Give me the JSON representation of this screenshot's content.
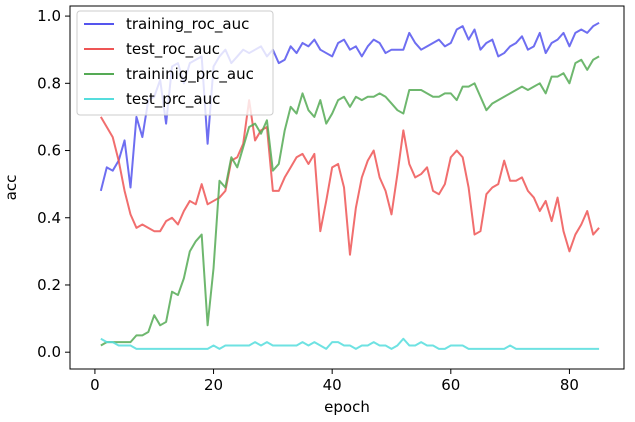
{
  "chart_data": {
    "type": "line",
    "xlabel": "epoch",
    "ylabel": "acc",
    "xlim": [
      -4.2,
      89.2
    ],
    "ylim": [
      -0.05,
      1.03
    ],
    "xticks": [
      0,
      20,
      40,
      60,
      80
    ],
    "yticks": [
      0.0,
      0.2,
      0.4,
      0.6,
      0.8,
      1.0
    ],
    "xtick_labels": [
      "0",
      "20",
      "40",
      "60",
      "80"
    ],
    "ytick_labels": [
      "0.0",
      "0.2",
      "0.4",
      "0.6",
      "0.8",
      "1.0"
    ],
    "grid": false,
    "legend_position": "upper-left",
    "x": [
      1,
      2,
      3,
      4,
      5,
      6,
      7,
      8,
      9,
      10,
      11,
      12,
      13,
      14,
      15,
      16,
      17,
      18,
      19,
      20,
      21,
      22,
      23,
      24,
      25,
      26,
      27,
      28,
      29,
      30,
      31,
      32,
      33,
      34,
      35,
      36,
      37,
      38,
      39,
      40,
      41,
      42,
      43,
      44,
      45,
      46,
      47,
      48,
      49,
      50,
      51,
      52,
      53,
      54,
      55,
      56,
      57,
      58,
      59,
      60,
      61,
      62,
      63,
      64,
      65,
      66,
      67,
      68,
      69,
      70,
      71,
      72,
      73,
      74,
      75,
      76,
      77,
      78,
      79,
      80,
      81,
      82,
      83,
      84,
      85
    ],
    "series": [
      {
        "name": "training_roc_auc",
        "color": "#5555ee",
        "values": [
          0.48,
          0.55,
          0.54,
          0.57,
          0.63,
          0.49,
          0.7,
          0.64,
          0.75,
          0.76,
          0.81,
          0.68,
          0.85,
          0.86,
          0.8,
          0.86,
          0.87,
          0.88,
          0.62,
          0.85,
          0.88,
          0.9,
          0.86,
          0.88,
          0.9,
          0.89,
          0.9,
          0.91,
          0.88,
          0.9,
          0.86,
          0.87,
          0.91,
          0.89,
          0.92,
          0.91,
          0.93,
          0.9,
          0.89,
          0.88,
          0.92,
          0.93,
          0.9,
          0.91,
          0.88,
          0.91,
          0.93,
          0.92,
          0.89,
          0.9,
          0.9,
          0.9,
          0.95,
          0.92,
          0.9,
          0.91,
          0.92,
          0.93,
          0.91,
          0.92,
          0.96,
          0.97,
          0.93,
          0.96,
          0.9,
          0.92,
          0.93,
          0.88,
          0.89,
          0.91,
          0.92,
          0.94,
          0.9,
          0.91,
          0.95,
          0.89,
          0.92,
          0.93,
          0.95,
          0.91,
          0.95,
          0.96,
          0.95,
          0.97,
          0.98
        ]
      },
      {
        "name": "test_roc_auc",
        "color": "#ee5555",
        "values": [
          0.7,
          0.67,
          0.64,
          0.57,
          0.48,
          0.41,
          0.37,
          0.38,
          0.37,
          0.36,
          0.36,
          0.39,
          0.4,
          0.38,
          0.42,
          0.45,
          0.44,
          0.5,
          0.44,
          0.45,
          0.46,
          0.48,
          0.57,
          0.58,
          0.62,
          0.75,
          0.63,
          0.66,
          0.67,
          0.48,
          0.48,
          0.52,
          0.55,
          0.58,
          0.59,
          0.56,
          0.59,
          0.36,
          0.45,
          0.55,
          0.56,
          0.49,
          0.29,
          0.43,
          0.52,
          0.57,
          0.6,
          0.52,
          0.48,
          0.41,
          0.53,
          0.66,
          0.56,
          0.52,
          0.53,
          0.55,
          0.48,
          0.47,
          0.5,
          0.58,
          0.6,
          0.58,
          0.49,
          0.35,
          0.36,
          0.47,
          0.49,
          0.5,
          0.57,
          0.51,
          0.51,
          0.52,
          0.48,
          0.46,
          0.42,
          0.45,
          0.39,
          0.46,
          0.36,
          0.3,
          0.35,
          0.38,
          0.42,
          0.35,
          0.37
        ]
      },
      {
        "name": "traininig_prc_auc",
        "color": "#55aa55",
        "values": [
          0.02,
          0.03,
          0.03,
          0.03,
          0.03,
          0.03,
          0.05,
          0.05,
          0.06,
          0.11,
          0.08,
          0.09,
          0.18,
          0.17,
          0.22,
          0.3,
          0.33,
          0.35,
          0.08,
          0.25,
          0.51,
          0.49,
          0.58,
          0.55,
          0.61,
          0.67,
          0.68,
          0.65,
          0.69,
          0.54,
          0.56,
          0.66,
          0.73,
          0.71,
          0.77,
          0.72,
          0.7,
          0.75,
          0.68,
          0.71,
          0.75,
          0.76,
          0.73,
          0.76,
          0.75,
          0.76,
          0.76,
          0.77,
          0.76,
          0.74,
          0.72,
          0.71,
          0.78,
          0.78,
          0.78,
          0.77,
          0.76,
          0.76,
          0.77,
          0.77,
          0.75,
          0.79,
          0.79,
          0.8,
          0.76,
          0.72,
          0.74,
          0.75,
          0.76,
          0.77,
          0.78,
          0.79,
          0.78,
          0.79,
          0.8,
          0.77,
          0.82,
          0.82,
          0.83,
          0.8,
          0.86,
          0.87,
          0.84,
          0.87,
          0.88
        ]
      },
      {
        "name": "test_prc_auc",
        "color": "#55dddd",
        "values": [
          0.04,
          0.03,
          0.03,
          0.02,
          0.02,
          0.02,
          0.01,
          0.01,
          0.01,
          0.01,
          0.01,
          0.01,
          0.01,
          0.01,
          0.01,
          0.01,
          0.01,
          0.01,
          0.01,
          0.02,
          0.01,
          0.02,
          0.02,
          0.02,
          0.02,
          0.02,
          0.03,
          0.02,
          0.03,
          0.02,
          0.02,
          0.02,
          0.02,
          0.02,
          0.03,
          0.02,
          0.03,
          0.02,
          0.01,
          0.03,
          0.03,
          0.02,
          0.02,
          0.01,
          0.02,
          0.02,
          0.03,
          0.02,
          0.02,
          0.01,
          0.02,
          0.04,
          0.02,
          0.02,
          0.03,
          0.02,
          0.02,
          0.01,
          0.01,
          0.02,
          0.02,
          0.02,
          0.01,
          0.01,
          0.01,
          0.01,
          0.01,
          0.01,
          0.01,
          0.02,
          0.01,
          0.01,
          0.01,
          0.01,
          0.01,
          0.01,
          0.01,
          0.01,
          0.01,
          0.01,
          0.01,
          0.01,
          0.01,
          0.01,
          0.01
        ]
      }
    ]
  }
}
